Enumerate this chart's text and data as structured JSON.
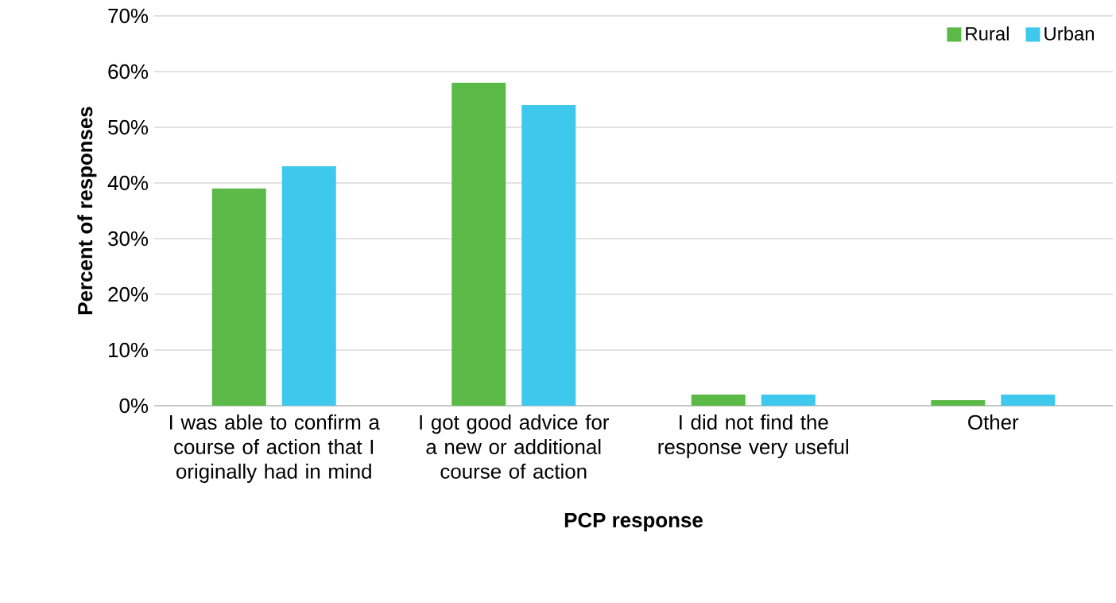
{
  "chart_data": {
    "type": "bar",
    "xlabel": "PCP response",
    "ylabel": "Percent of responses",
    "categories": [
      "I was able to confirm a course of action that I originally had in mind",
      "I got good advice for a new or additional course of action",
      "I did not find the response very useful",
      "Other"
    ],
    "series": [
      {
        "name": "Rural",
        "color": "#5bba47",
        "values": [
          39,
          58,
          2,
          1
        ]
      },
      {
        "name": "Urban",
        "color": "#3ec8ec",
        "values": [
          43,
          54,
          2,
          2
        ]
      }
    ],
    "ylim": [
      0,
      70
    ],
    "yticks": [
      {
        "value": 0,
        "label": "0%"
      },
      {
        "value": 10,
        "label": "10%"
      },
      {
        "value": 20,
        "label": "20%"
      },
      {
        "value": 30,
        "label": "30%"
      },
      {
        "value": 40,
        "label": "40%"
      },
      {
        "value": 50,
        "label": "50%"
      },
      {
        "value": 60,
        "label": "60%"
      },
      {
        "value": 70,
        "label": "70%"
      }
    ],
    "grid": "y",
    "legend": "top right"
  }
}
